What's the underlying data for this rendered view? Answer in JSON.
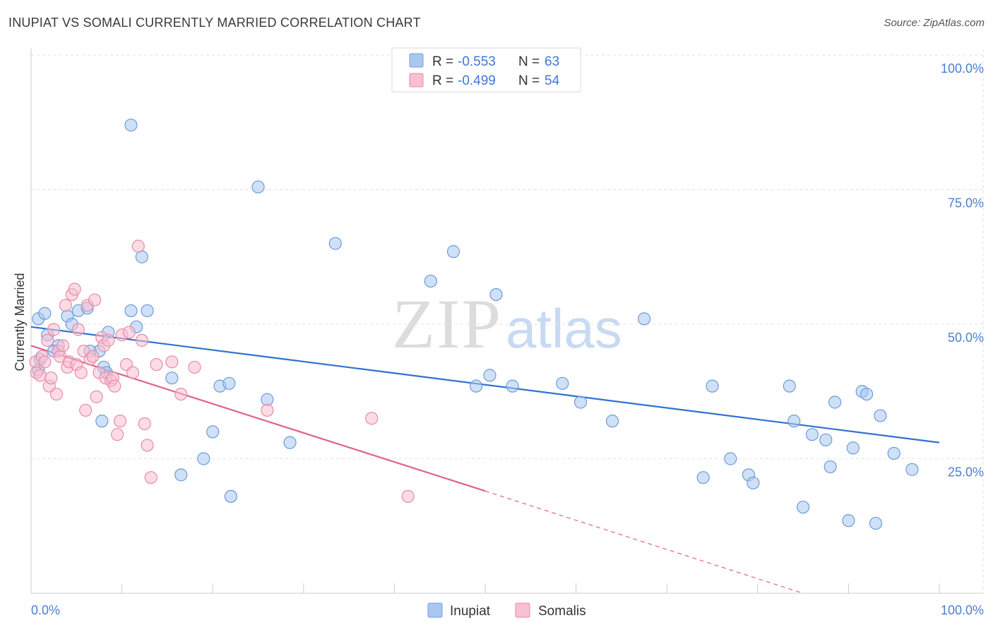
{
  "title": "INUPIAT VS SOMALI CURRENTLY MARRIED CORRELATION CHART",
  "source": "Source: ZipAtlas.com",
  "watermark": {
    "zip": "ZIP",
    "atlas": "atlas"
  },
  "legend_box": [
    {
      "r_label": "R =",
      "r_value": "-0.553",
      "n_label": "N =",
      "n_value": "63",
      "color": "#a9c8f0",
      "stroke": "#6e9fe0"
    },
    {
      "r_label": "R =",
      "r_value": "-0.499",
      "n_label": "N =",
      "n_value": "54",
      "color": "#f8bfd0",
      "stroke": "#e88aa8"
    }
  ],
  "chart_data": {
    "type": "scatter",
    "title": "INUPIAT VS SOMALI CURRENTLY MARRIED CORRELATION CHART",
    "xlabel": "",
    "ylabel": "Currently Married",
    "xlim": [
      0,
      100
    ],
    "ylim": [
      0,
      100
    ],
    "x_tick_labels": [
      "0.0%",
      "100.0%"
    ],
    "y_tick_labels": [
      "25.0%",
      "50.0%",
      "75.0%",
      "100.0%"
    ],
    "y_ticks": [
      25,
      50,
      75,
      100
    ],
    "grid": true,
    "legend": "bottom-center",
    "series": [
      {
        "name": "Inupiat",
        "color": "#a9c8f0",
        "stroke": "#6a9bdc",
        "line_color": "#2f72d0",
        "trend": {
          "x0": 0,
          "y0": 49.5,
          "x1": 100,
          "y1": 28.0
        },
        "points": [
          [
            0.8,
            51
          ],
          [
            1.5,
            52
          ],
          [
            1.8,
            48
          ],
          [
            3.0,
            46
          ],
          [
            1.0,
            43.5
          ],
          [
            0.8,
            41.5
          ],
          [
            2.5,
            45
          ],
          [
            4.0,
            51.5
          ],
          [
            4.5,
            50
          ],
          [
            5.2,
            52.5
          ],
          [
            6.2,
            53
          ],
          [
            7.5,
            45
          ],
          [
            6.5,
            45
          ],
          [
            8.0,
            42
          ],
          [
            8.5,
            48.5
          ],
          [
            8.3,
            41
          ],
          [
            7.8,
            32
          ],
          [
            11.0,
            52.5
          ],
          [
            11.6,
            49.5
          ],
          [
            12.2,
            62.5
          ],
          [
            12.8,
            52.5
          ],
          [
            11.0,
            87
          ],
          [
            15.5,
            40
          ],
          [
            16.5,
            22
          ],
          [
            19.0,
            25
          ],
          [
            20.0,
            30
          ],
          [
            20.8,
            38.5
          ],
          [
            21.8,
            39
          ],
          [
            22.0,
            18
          ],
          [
            25.0,
            75.5
          ],
          [
            26.0,
            36
          ],
          [
            28.5,
            28
          ],
          [
            33.5,
            65
          ],
          [
            44.0,
            58
          ],
          [
            46.5,
            63.5
          ],
          [
            49.0,
            38.5
          ],
          [
            50.5,
            40.5
          ],
          [
            51.2,
            55.5
          ],
          [
            53.0,
            38.5
          ],
          [
            58.5,
            39
          ],
          [
            60.5,
            35.5
          ],
          [
            64.0,
            32
          ],
          [
            67.5,
            51
          ],
          [
            74.0,
            21.5
          ],
          [
            75.0,
            38.5
          ],
          [
            77.0,
            25
          ],
          [
            79.0,
            22
          ],
          [
            79.5,
            20.5
          ],
          [
            83.5,
            38.5
          ],
          [
            84.0,
            32
          ],
          [
            85.0,
            16
          ],
          [
            86.0,
            29.5
          ],
          [
            87.5,
            28.5
          ],
          [
            88.0,
            23.5
          ],
          [
            88.5,
            35.5
          ],
          [
            90.0,
            13.5
          ],
          [
            90.5,
            27
          ],
          [
            91.5,
            37.5
          ],
          [
            92.0,
            37
          ],
          [
            93.0,
            13
          ],
          [
            93.5,
            33
          ],
          [
            95.0,
            26
          ],
          [
            97.0,
            23
          ]
        ]
      },
      {
        "name": "Somalis",
        "color": "#f8bfd0",
        "stroke": "#e88aa8",
        "line_color": "#e0628e",
        "trend": {
          "x0": 0,
          "y0": 46.0,
          "x1": 50,
          "y1": 19.0
        },
        "trend_dashed": {
          "x0": 50,
          "y0": 19.0,
          "x1": 85,
          "y1": 0.0
        },
        "points": [
          [
            0.5,
            43
          ],
          [
            0.6,
            41
          ],
          [
            1.0,
            40.5
          ],
          [
            1.2,
            44
          ],
          [
            1.5,
            43
          ],
          [
            1.8,
            47
          ],
          [
            2.0,
            38.5
          ],
          [
            2.2,
            40
          ],
          [
            2.5,
            49
          ],
          [
            2.8,
            37
          ],
          [
            3.0,
            45
          ],
          [
            3.2,
            44
          ],
          [
            3.5,
            46
          ],
          [
            3.8,
            53.5
          ],
          [
            4.0,
            42
          ],
          [
            4.2,
            43
          ],
          [
            4.5,
            55.5
          ],
          [
            4.8,
            56.5
          ],
          [
            5.0,
            42.5
          ],
          [
            5.2,
            49
          ],
          [
            5.5,
            41
          ],
          [
            5.8,
            45
          ],
          [
            6.0,
            34
          ],
          [
            6.2,
            53.5
          ],
          [
            6.5,
            43.5
          ],
          [
            6.8,
            44
          ],
          [
            7.0,
            54.5
          ],
          [
            7.2,
            36.5
          ],
          [
            7.5,
            41
          ],
          [
            7.8,
            47.5
          ],
          [
            8.0,
            46
          ],
          [
            8.2,
            40
          ],
          [
            8.5,
            47
          ],
          [
            8.8,
            39.5
          ],
          [
            9.0,
            40
          ],
          [
            9.2,
            38.5
          ],
          [
            9.5,
            29.5
          ],
          [
            9.8,
            32
          ],
          [
            10.0,
            48
          ],
          [
            10.5,
            42.5
          ],
          [
            10.8,
            48.5
          ],
          [
            11.2,
            41
          ],
          [
            11.8,
            64.5
          ],
          [
            12.2,
            47
          ],
          [
            12.5,
            31.5
          ],
          [
            12.8,
            27.5
          ],
          [
            13.2,
            21.5
          ],
          [
            13.8,
            42.5
          ],
          [
            15.5,
            43
          ],
          [
            16.5,
            37
          ],
          [
            18.0,
            42
          ],
          [
            26.0,
            34
          ],
          [
            37.5,
            32.5
          ],
          [
            41.5,
            18
          ]
        ]
      }
    ]
  },
  "bottom_legend": [
    {
      "label": "Inupiat",
      "color": "#a9c8f0",
      "stroke": "#6e9fe0"
    },
    {
      "label": "Somalis",
      "color": "#f8bfd0",
      "stroke": "#e88aa8"
    }
  ]
}
